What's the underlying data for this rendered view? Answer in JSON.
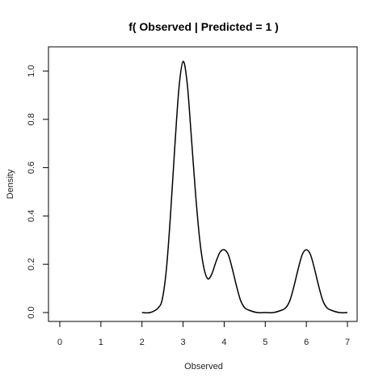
{
  "chart_data": {
    "type": "line",
    "title": "f( Observed | Predicted =  1  )",
    "xlabel": "Observed",
    "ylabel": "Density",
    "xlim": [
      0,
      7
    ],
    "ylim": [
      0,
      1.05
    ],
    "x_ticks": [
      0,
      1,
      2,
      3,
      4,
      5,
      6,
      7
    ],
    "x_tick_labels": [
      "0",
      "1",
      "2",
      "3",
      "4",
      "5",
      "6",
      "7"
    ],
    "y_ticks": [
      0.0,
      0.2,
      0.4,
      0.6,
      0.8,
      1.0
    ],
    "y_tick_labels": [
      "0.0",
      "0.2",
      "0.4",
      "0.6",
      "0.8",
      "1.0"
    ],
    "grid": false,
    "series": [
      {
        "color": "#000000",
        "x": [
          2.0,
          2.2,
          2.4,
          2.5,
          2.6,
          2.7,
          2.8,
          2.9,
          3.0,
          3.1,
          3.2,
          3.3,
          3.4,
          3.5,
          3.6,
          3.7,
          3.8,
          3.9,
          4.0,
          4.1,
          4.2,
          4.3,
          4.4,
          4.5,
          4.6,
          4.8,
          5.0,
          5.2,
          5.4,
          5.5,
          5.6,
          5.7,
          5.8,
          5.9,
          6.0,
          6.1,
          6.2,
          6.3,
          6.4,
          6.5,
          6.6,
          6.8,
          7.0
        ],
        "y": [
          0.0,
          0.0,
          0.02,
          0.06,
          0.19,
          0.42,
          0.69,
          0.93,
          1.04,
          0.95,
          0.73,
          0.5,
          0.31,
          0.19,
          0.14,
          0.16,
          0.21,
          0.25,
          0.26,
          0.24,
          0.18,
          0.11,
          0.05,
          0.02,
          0.01,
          0.0,
          0.0,
          0.0,
          0.01,
          0.02,
          0.05,
          0.11,
          0.18,
          0.24,
          0.26,
          0.24,
          0.18,
          0.11,
          0.05,
          0.02,
          0.01,
          0.0,
          0.0
        ]
      }
    ]
  }
}
